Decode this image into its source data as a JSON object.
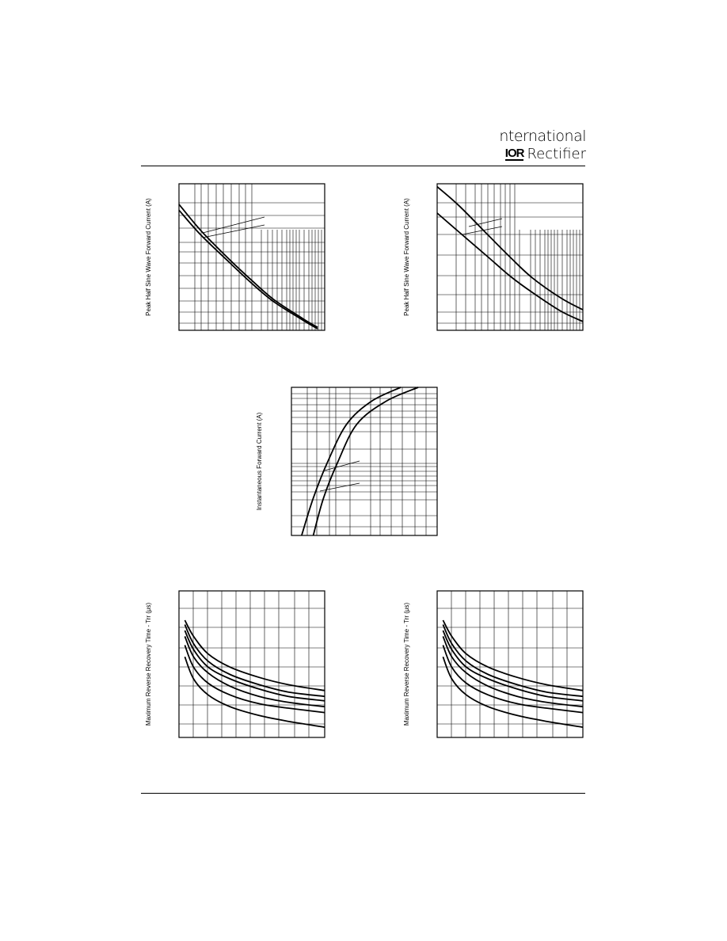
{
  "header": {
    "brand_line1": "nternational",
    "brand_mark": "IOR",
    "brand_line2": "Rectifier"
  },
  "chart_data": [
    {
      "type": "line",
      "ylabel": "Peak Half Sine Wave Forward Current (A)",
      "xscale": "log",
      "xlim": [
        1,
        100
      ],
      "ylim": [
        0,
        1
      ],
      "grid": true,
      "series": [
        {
          "x": [
            1,
            2,
            5,
            10,
            20,
            50,
            80
          ],
          "y": [
            0.86,
            0.68,
            0.48,
            0.34,
            0.21,
            0.08,
            0.02
          ]
        },
        {
          "x": [
            1,
            2,
            5,
            10,
            20,
            50,
            80
          ],
          "y": [
            0.82,
            0.65,
            0.46,
            0.32,
            0.195,
            0.07,
            0.01
          ]
        }
      ]
    },
    {
      "type": "line",
      "ylabel": "Peak Half Sine Wave Forward Current (A)",
      "xscale": "log",
      "xlim": [
        1,
        100
      ],
      "ylim": [
        0,
        1
      ],
      "grid": true,
      "series": [
        {
          "x": [
            1,
            2,
            5,
            10,
            20,
            50,
            100
          ],
          "y": [
            0.98,
            0.85,
            0.65,
            0.5,
            0.36,
            0.22,
            0.14
          ]
        },
        {
          "x": [
            1,
            2,
            5,
            10,
            20,
            50,
            100
          ],
          "y": [
            0.8,
            0.67,
            0.5,
            0.37,
            0.26,
            0.13,
            0.06
          ]
        }
      ]
    },
    {
      "type": "line",
      "ylabel": "Instantaneous Forward Current (A)",
      "yscale": "log",
      "xlim": [
        0,
        1
      ],
      "ylim": [
        1,
        100
      ],
      "grid": true,
      "series": [
        {
          "x": [
            0.07,
            0.15,
            0.25,
            0.38,
            0.55,
            0.75
          ],
          "y": [
            1.0,
            3.2,
            10,
            32,
            65,
            100
          ]
        },
        {
          "x": [
            0.15,
            0.22,
            0.32,
            0.45,
            0.65,
            0.87
          ],
          "y": [
            1.0,
            3.2,
            10,
            32,
            65,
            100
          ]
        }
      ]
    },
    {
      "type": "line",
      "ylabel": "Maximum Reverse Recovery Time - Trr (μs)",
      "xlim": [
        0,
        1
      ],
      "ylim": [
        0,
        1
      ],
      "grid": true,
      "series": [
        {
          "x": [
            0.04,
            0.1,
            0.2,
            0.35,
            0.55,
            0.75,
            1.0
          ],
          "y": [
            0.8,
            0.69,
            0.57,
            0.48,
            0.41,
            0.36,
            0.32
          ]
        },
        {
          "x": [
            0.04,
            0.1,
            0.2,
            0.35,
            0.55,
            0.75,
            1.0
          ],
          "y": [
            0.77,
            0.64,
            0.52,
            0.43,
            0.36,
            0.31,
            0.28
          ]
        },
        {
          "x": [
            0.04,
            0.1,
            0.2,
            0.35,
            0.55,
            0.75,
            1.0
          ],
          "y": [
            0.73,
            0.6,
            0.48,
            0.4,
            0.33,
            0.28,
            0.25
          ]
        },
        {
          "x": [
            0.04,
            0.1,
            0.2,
            0.35,
            0.55,
            0.75,
            1.0
          ],
          "y": [
            0.69,
            0.55,
            0.44,
            0.35,
            0.28,
            0.24,
            0.21
          ]
        },
        {
          "x": [
            0.04,
            0.1,
            0.2,
            0.35,
            0.55,
            0.75,
            1.0
          ],
          "y": [
            0.63,
            0.48,
            0.37,
            0.29,
            0.23,
            0.2,
            0.17
          ]
        },
        {
          "x": [
            0.04,
            0.1,
            0.2,
            0.35,
            0.55,
            0.75,
            1.0
          ],
          "y": [
            0.55,
            0.4,
            0.29,
            0.21,
            0.15,
            0.11,
            0.07
          ]
        }
      ]
    },
    {
      "type": "line",
      "ylabel": "Maximum Reverse Recovery Time - Trr (μs)",
      "xlim": [
        0,
        1
      ],
      "ylim": [
        0,
        1
      ],
      "grid": true,
      "series": [
        {
          "x": [
            0.04,
            0.1,
            0.2,
            0.35,
            0.55,
            0.75,
            1.0
          ],
          "y": [
            0.8,
            0.69,
            0.57,
            0.48,
            0.41,
            0.36,
            0.32
          ]
        },
        {
          "x": [
            0.04,
            0.1,
            0.2,
            0.35,
            0.55,
            0.75,
            1.0
          ],
          "y": [
            0.77,
            0.64,
            0.52,
            0.43,
            0.36,
            0.31,
            0.28
          ]
        },
        {
          "x": [
            0.04,
            0.1,
            0.2,
            0.35,
            0.55,
            0.75,
            1.0
          ],
          "y": [
            0.73,
            0.6,
            0.48,
            0.4,
            0.33,
            0.28,
            0.25
          ]
        },
        {
          "x": [
            0.04,
            0.1,
            0.2,
            0.35,
            0.55,
            0.75,
            1.0
          ],
          "y": [
            0.69,
            0.55,
            0.44,
            0.35,
            0.28,
            0.24,
            0.21
          ]
        },
        {
          "x": [
            0.04,
            0.1,
            0.2,
            0.35,
            0.55,
            0.75,
            1.0
          ],
          "y": [
            0.63,
            0.48,
            0.37,
            0.29,
            0.23,
            0.2,
            0.17
          ]
        },
        {
          "x": [
            0.04,
            0.1,
            0.2,
            0.35,
            0.55,
            0.75,
            1.0
          ],
          "y": [
            0.55,
            0.4,
            0.29,
            0.21,
            0.15,
            0.11,
            0.07
          ]
        }
      ]
    }
  ]
}
